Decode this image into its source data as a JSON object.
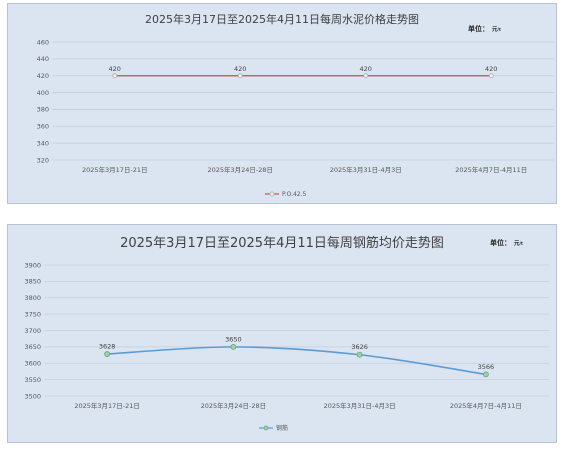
{
  "chart_data": [
    {
      "type": "line",
      "title": "2025年3月17日至2025年4月11日每周水泥价格走势图",
      "unit_label": "单位：",
      "unit_value": "元",
      "unit_suffix": "/t",
      "categories": [
        "2025年3月17日-21日",
        "2025年3月24日-28日",
        "2025年3月31日-4月3日",
        "2025年4月7日-4月11日"
      ],
      "series": [
        {
          "name": "P.O.42.5",
          "values": [
            420,
            420,
            420,
            420
          ],
          "color": "#c0504d"
        }
      ],
      "ylim": [
        320,
        460
      ],
      "yticks": [
        320,
        340,
        360,
        380,
        400,
        420,
        440,
        460
      ],
      "legend_position": "bottom",
      "grid": true
    },
    {
      "type": "line",
      "title": "2025年3月17日至2025年4月11日每周钢筋均价走势图",
      "unit_label": "单位：",
      "unit_value": "元",
      "unit_suffix": "/t",
      "categories": [
        "2025年3月17日-21日",
        "2025年3月24日-28日",
        "2025年3月31日-4月3日",
        "2025年4月7日-4月11日"
      ],
      "series": [
        {
          "name": "钢筋",
          "values": [
            3628,
            3650,
            3626,
            3566
          ],
          "color": "#5b9bd5"
        }
      ],
      "ylim": [
        3500,
        3900
      ],
      "yticks": [
        3500,
        3550,
        3600,
        3650,
        3700,
        3750,
        3800,
        3850,
        3900
      ],
      "legend_position": "bottom",
      "grid": true
    }
  ]
}
